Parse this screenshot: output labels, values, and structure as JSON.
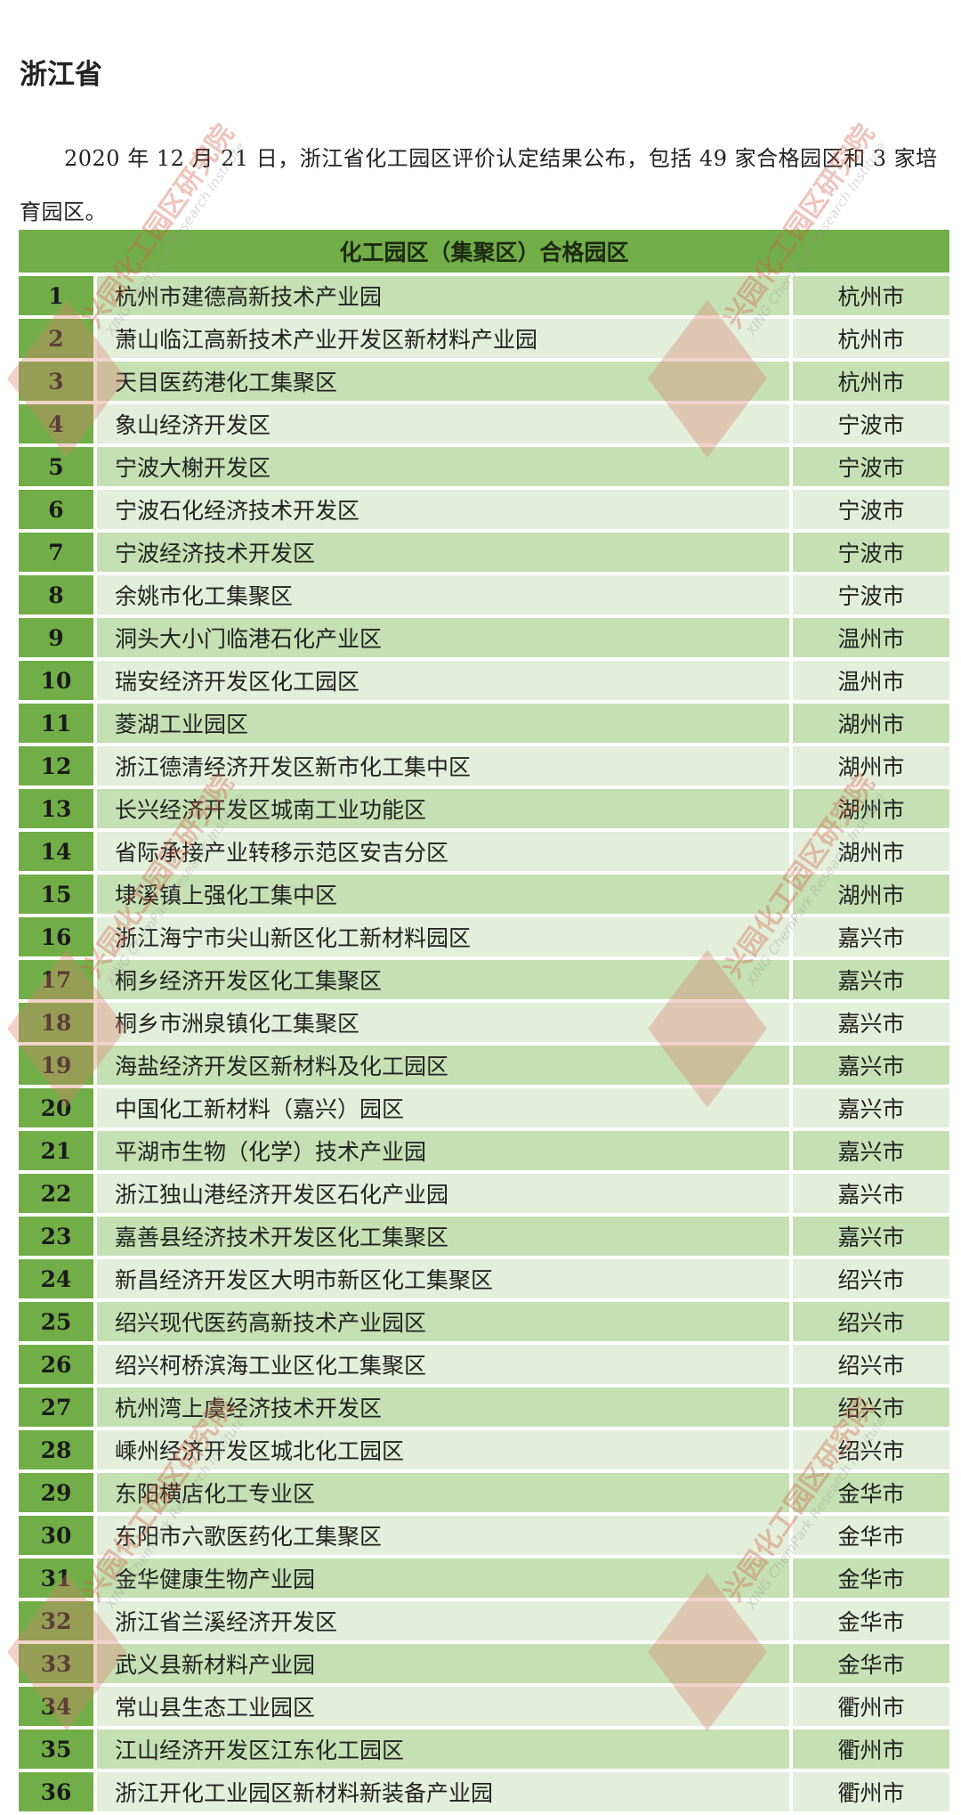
{
  "heading": "浙江省",
  "intro": "2020 年 12 月 21 日，浙江省化工园区评价认定结果公布，包括 49 家合格园区和 3 家培育园区。",
  "table": {
    "title": "化工园区（集聚区）合格园区",
    "rows": [
      {
        "no": "1",
        "name": "杭州市建德高新技术产业园",
        "city": "杭州市"
      },
      {
        "no": "2",
        "name": "萧山临江高新技术产业开发区新材料产业园",
        "city": "杭州市"
      },
      {
        "no": "3",
        "name": "天目医药港化工集聚区",
        "city": "杭州市"
      },
      {
        "no": "4",
        "name": "象山经济开发区",
        "city": "宁波市"
      },
      {
        "no": "5",
        "name": "宁波大榭开发区",
        "city": "宁波市"
      },
      {
        "no": "6",
        "name": "宁波石化经济技术开发区",
        "city": "宁波市"
      },
      {
        "no": "7",
        "name": "宁波经济技术开发区",
        "city": "宁波市"
      },
      {
        "no": "8",
        "name": "余姚市化工集聚区",
        "city": "宁波市"
      },
      {
        "no": "9",
        "name": "洞头大小门临港石化产业区",
        "city": "温州市"
      },
      {
        "no": "10",
        "name": "瑞安经济开发区化工园区",
        "city": "温州市"
      },
      {
        "no": "11",
        "name": "菱湖工业园区",
        "city": "湖州市"
      },
      {
        "no": "12",
        "name": "浙江德清经济开发区新市化工集中区",
        "city": "湖州市"
      },
      {
        "no": "13",
        "name": "长兴经济开发区城南工业功能区",
        "city": "湖州市"
      },
      {
        "no": "14",
        "name": "省际承接产业转移示范区安吉分区",
        "city": "湖州市"
      },
      {
        "no": "15",
        "name": "埭溪镇上强化工集中区",
        "city": "湖州市"
      },
      {
        "no": "16",
        "name": "浙江海宁市尖山新区化工新材料园区",
        "city": "嘉兴市"
      },
      {
        "no": "17",
        "name": "桐乡经济开发区化工集聚区",
        "city": "嘉兴市"
      },
      {
        "no": "18",
        "name": "桐乡市洲泉镇化工集聚区",
        "city": "嘉兴市"
      },
      {
        "no": "19",
        "name": "海盐经济开发区新材料及化工园区",
        "city": "嘉兴市"
      },
      {
        "no": "20",
        "name": "中国化工新材料（嘉兴）园区",
        "city": "嘉兴市"
      },
      {
        "no": "21",
        "name": "平湖市生物（化学）技术产业园",
        "city": "嘉兴市"
      },
      {
        "no": "22",
        "name": "浙江独山港经济开发区石化产业园",
        "city": "嘉兴市"
      },
      {
        "no": "23",
        "name": "嘉善县经济技术开发区化工集聚区",
        "city": "嘉兴市"
      },
      {
        "no": "24",
        "name": "新昌经济开发区大明市新区化工集聚区",
        "city": "绍兴市"
      },
      {
        "no": "25",
        "name": "绍兴现代医药高新技术产业园区",
        "city": "绍兴市"
      },
      {
        "no": "26",
        "name": "绍兴柯桥滨海工业区化工集聚区",
        "city": "绍兴市"
      },
      {
        "no": "27",
        "name": "杭州湾上虞经济技术开发区",
        "city": "绍兴市"
      },
      {
        "no": "28",
        "name": "嵊州经济开发区城北化工园区",
        "city": "绍兴市"
      },
      {
        "no": "29",
        "name": "东阳横店化工专业区",
        "city": "金华市"
      },
      {
        "no": "30",
        "name": "东阳市六歌医药化工集聚区",
        "city": "金华市"
      },
      {
        "no": "31",
        "name": "金华健康生物产业园",
        "city": "金华市"
      },
      {
        "no": "32",
        "name": "浙江省兰溪经济开发区",
        "city": "金华市"
      },
      {
        "no": "33",
        "name": "武义县新材料产业园",
        "city": "金华市"
      },
      {
        "no": "34",
        "name": "常山县生态工业园区",
        "city": "衢州市"
      },
      {
        "no": "35",
        "name": "江山经济开发区江东化工园区",
        "city": "衢州市"
      },
      {
        "no": "36",
        "name": "浙江开化工业园区新材料新装备产业园",
        "city": "衢州市"
      }
    ]
  },
  "watermark": {
    "text": "兴园化工园区研究院",
    "sub": "XING ChemPark Research Institute"
  },
  "colors": {
    "header_green": "#72ae48",
    "row_odd": "#c5e0b3",
    "row_even": "#e3efda",
    "watermark": "#d15a3e"
  }
}
